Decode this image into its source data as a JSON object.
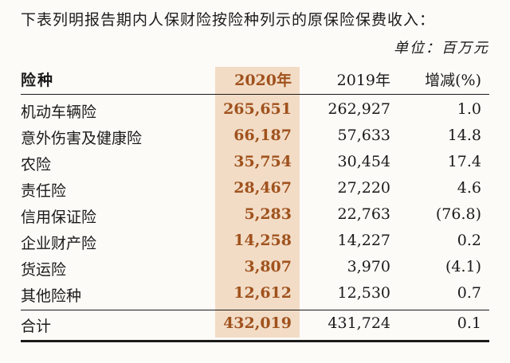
{
  "intro": "下表列明报告期内人保财险按险种列示的原保险保费收入：",
  "unit": "单位：百万元",
  "table": {
    "headers": {
      "name": "险种",
      "y2020": "2020年",
      "y2019": "2019年",
      "change": "增减(%)"
    },
    "rows": [
      {
        "name": "机动车辆险",
        "y2020": "265,651",
        "y2019": "262,927",
        "change": "1.0"
      },
      {
        "name": "意外伤害及健康险",
        "y2020": "66,187",
        "y2019": "57,633",
        "change": "14.8"
      },
      {
        "name": "农险",
        "y2020": "35,754",
        "y2019": "30,454",
        "change": "17.4"
      },
      {
        "name": "责任险",
        "y2020": "28,467",
        "y2019": "27,220",
        "change": "4.6"
      },
      {
        "name": "信用保证险",
        "y2020": "5,283",
        "y2019": "22,763",
        "change": "(76.8)"
      },
      {
        "name": "企业财产险",
        "y2020": "14,258",
        "y2019": "14,227",
        "change": "0.2"
      },
      {
        "name": "货运险",
        "y2020": "3,807",
        "y2019": "3,970",
        "change": "(4.1)"
      },
      {
        "name": "其他险种",
        "y2020": "12,612",
        "y2019": "12,530",
        "change": "0.7"
      }
    ],
    "total": {
      "name": "合计",
      "y2020": "432,019",
      "y2019": "431,724",
      "change": "0.1"
    }
  },
  "colors": {
    "accent": "#a0521d",
    "highlight": "#f2dcc6",
    "text": "#1a1a1a"
  }
}
